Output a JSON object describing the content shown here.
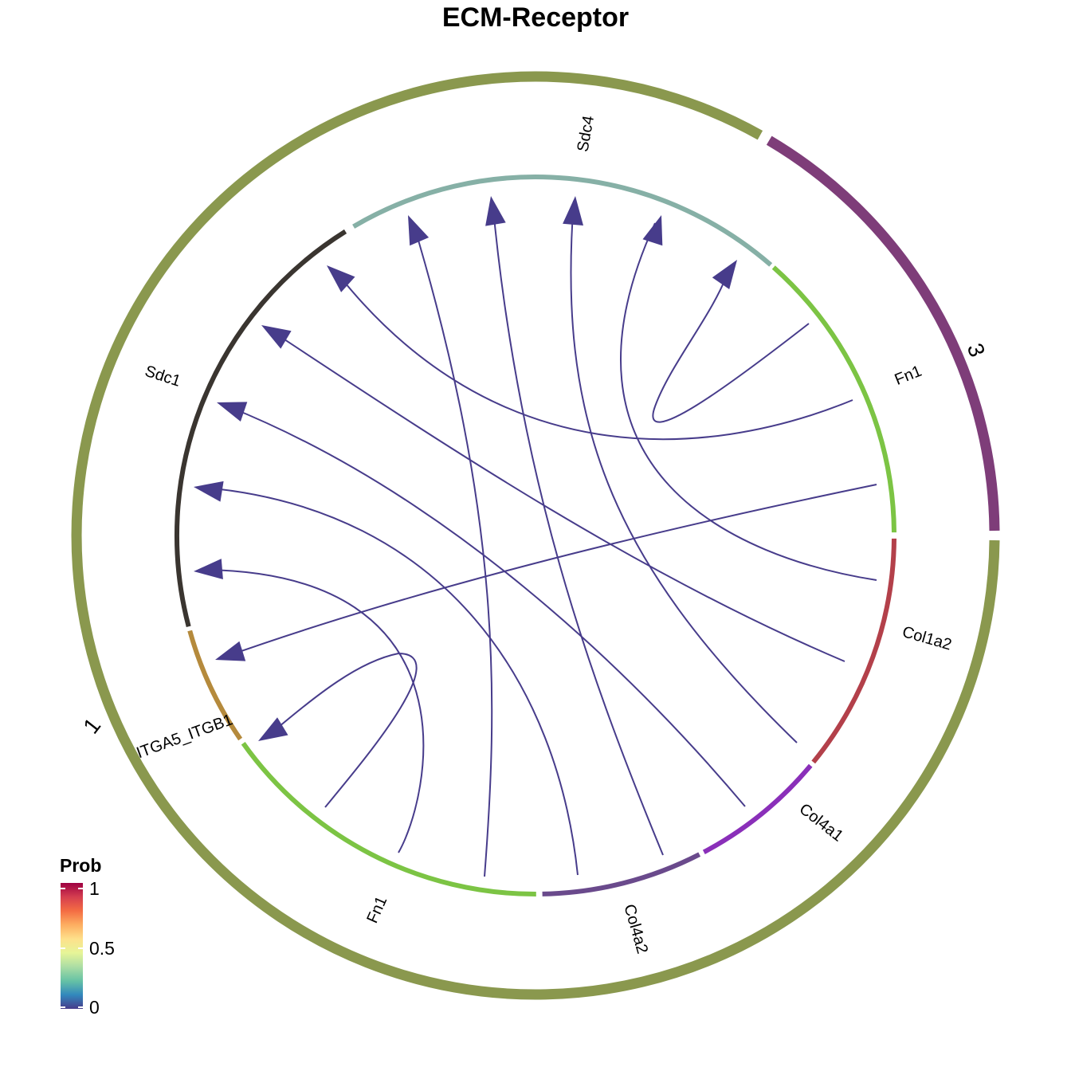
{
  "title": "ECM-Receptor",
  "groups": [
    {
      "label": "1",
      "color": "#8a984e"
    },
    {
      "label": "3",
      "color": "#7e3d79"
    }
  ],
  "genes": [
    {
      "label": "Sdc4",
      "color": "#86b0a6"
    },
    {
      "label": "Fn1",
      "color": "#7cc444"
    },
    {
      "label": "Col1a2",
      "color": "#b3404a"
    },
    {
      "label": "Col4a1",
      "color": "#8a2fb9"
    },
    {
      "label": "Col4a2",
      "color": "#6a4a8c"
    },
    {
      "label": "Fn1",
      "color": "#7cc444"
    },
    {
      "label": "ITGA5_ITGB1",
      "color": "#b58a3c"
    },
    {
      "label": "Sdc1",
      "color": "#3a3530"
    }
  ],
  "edge_color": "#473c8b",
  "legend": {
    "title": "Prob",
    "ticks": [
      "1",
      "0.5",
      "0"
    ],
    "colors": [
      "#9e0142",
      "#d53e4f",
      "#f46d43",
      "#fdae61",
      "#fee08b",
      "#e6f598",
      "#abdda4",
      "#66c2a5",
      "#3288bd",
      "#473c8b"
    ]
  }
}
